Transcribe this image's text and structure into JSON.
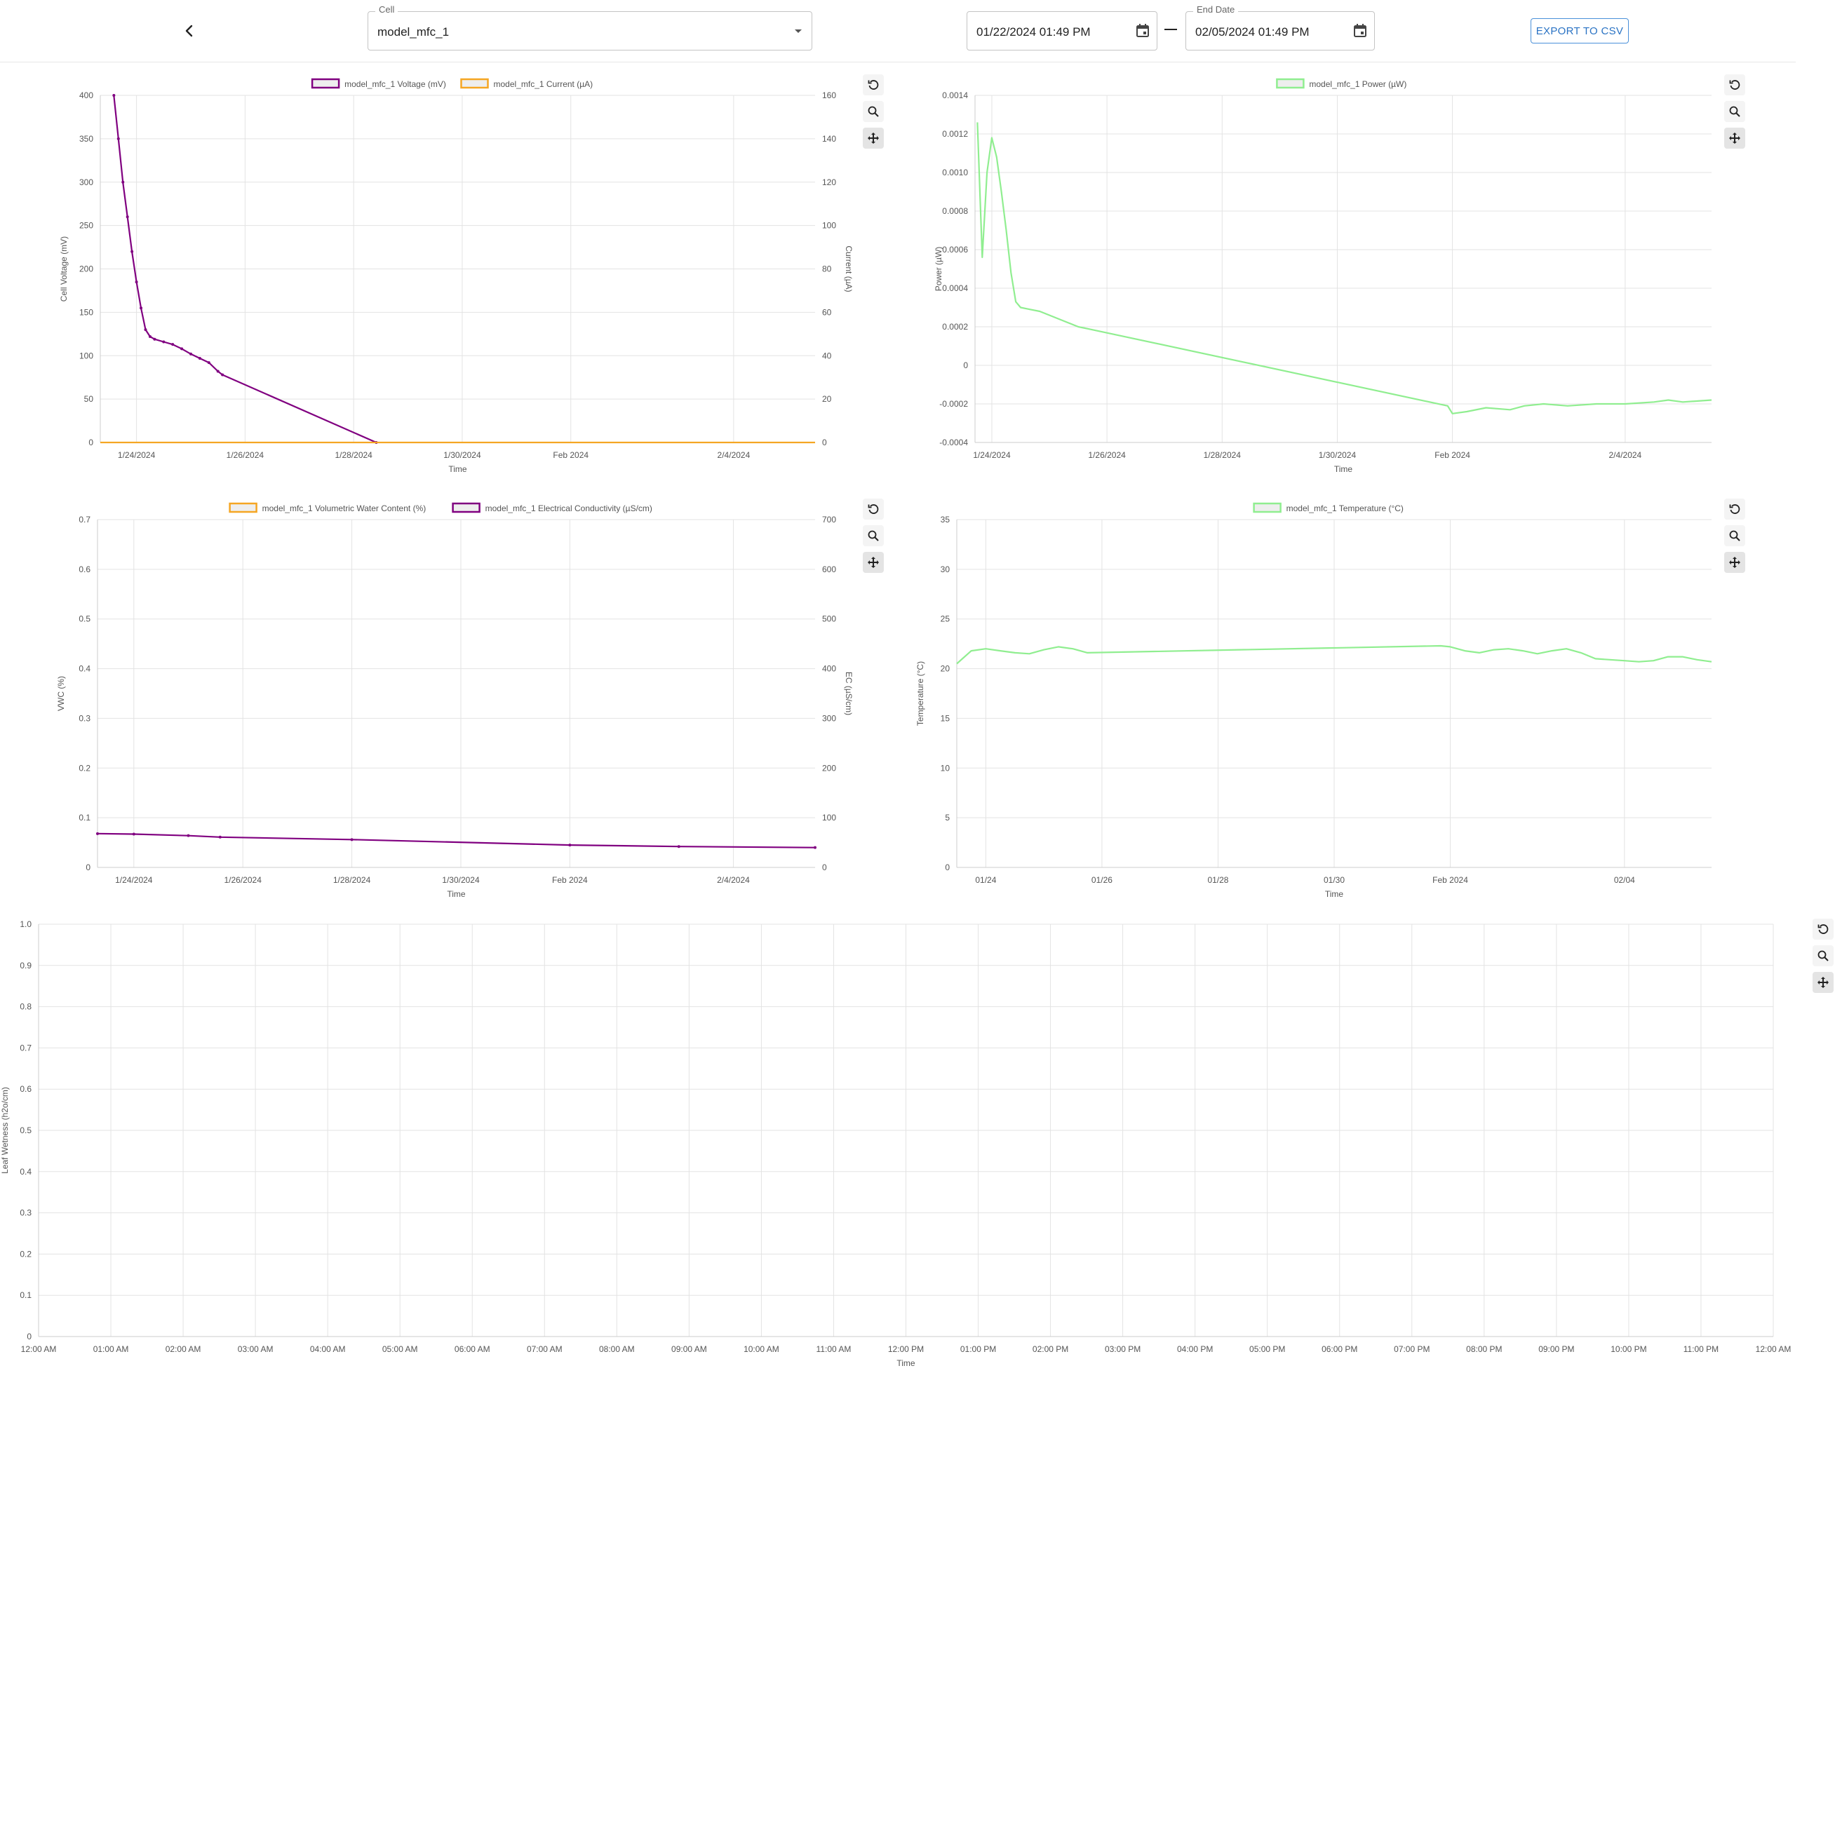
{
  "header": {
    "cell_label": "Cell",
    "cell_value": "model_mfc_1",
    "start_date": "01/22/2024 01:49 PM",
    "end_date_label": "End Date",
    "end_date": "02/05/2024 01:49 PM",
    "export_label": "EXPORT TO CSV"
  },
  "chart_data": [
    {
      "id": "vi",
      "type": "line",
      "series": [
        {
          "name": "model_mfc_1 Voltage (mV)",
          "color": "#800080",
          "axis": "left",
          "x": [
            "2024-01-23 14:00",
            "2024-01-23 16:00",
            "2024-01-23 18:00",
            "2024-01-23 20:00",
            "2024-01-23 22:00",
            "2024-01-24 00:00",
            "2024-01-24 02:00",
            "2024-01-24 04:00",
            "2024-01-24 06:00",
            "2024-01-24 08:00",
            "2024-01-24 12:00",
            "2024-01-24 16:00",
            "2024-01-24 20:00",
            "2024-01-25 00:00",
            "2024-01-25 04:00",
            "2024-01-25 08:00",
            "2024-01-25 12:00",
            "2024-01-25 14:00",
            "2024-01-28 10:00"
          ],
          "y": [
            400,
            350,
            300,
            260,
            220,
            185,
            155,
            130,
            122,
            119,
            116,
            113,
            108,
            102,
            97,
            92,
            82,
            78,
            0
          ]
        },
        {
          "name": "model_mfc_1 Current (µA)",
          "color": "#f5a623",
          "axis": "right",
          "x": [
            "2024-01-23 08:00",
            "2024-01-25 14:00",
            "2024-02-05 12:00"
          ],
          "y": [
            0,
            0,
            0
          ]
        }
      ],
      "xlabel": "Time",
      "ylabel": "Cell Voltage (mV)",
      "y2label": "Current (µA)",
      "ylim": [
        0,
        400
      ],
      "y2lim": [
        0,
        160
      ],
      "yticks": [
        "0",
        "50",
        "100",
        "150",
        "200",
        "250",
        "300",
        "350",
        "400"
      ],
      "y2ticks": [
        "0",
        "20",
        "40",
        "60",
        "80",
        "100",
        "120",
        "140",
        "160"
      ],
      "xticks": [
        {
          "label": "1/24/2024",
          "x": "2024-01-24 00:00"
        },
        {
          "label": "1/26/2024",
          "x": "2024-01-26 00:00"
        },
        {
          "label": "1/28/2024",
          "x": "2024-01-28 00:00"
        },
        {
          "label": "1/30/2024",
          "x": "2024-01-30 00:00"
        },
        {
          "label": "Feb 2024",
          "x": "2024-02-01 00:00"
        },
        {
          "label": "2/4/2024",
          "x": "2024-02-04 00:00"
        }
      ],
      "xlim": [
        "2024-01-23 08:00",
        "2024-02-05 12:00"
      ],
      "grid": true,
      "legend": "top"
    },
    {
      "id": "power",
      "type": "line",
      "series": [
        {
          "name": "model_mfc_1 Power (µW)",
          "color": "#90ee90",
          "axis": "left",
          "x": [
            "2024-01-23 18:00",
            "2024-01-23 20:00",
            "2024-01-23 22:00",
            "2024-01-24 00:00",
            "2024-01-24 02:00",
            "2024-01-24 04:00",
            "2024-01-24 06:00",
            "2024-01-24 08:00",
            "2024-01-24 10:00",
            "2024-01-24 12:00",
            "2024-01-24 16:00",
            "2024-01-24 20:00",
            "2024-01-25 00:00",
            "2024-01-25 04:00",
            "2024-01-25 08:00",
            "2024-01-25 12:00",
            "2024-01-25 16:00",
            "2024-01-31 22:00",
            "2024-02-01 00:00",
            "2024-02-01 06:00",
            "2024-02-01 14:00",
            "2024-02-02 00:00",
            "2024-02-02 06:00",
            "2024-02-02 14:00",
            "2024-02-03 00:00",
            "2024-02-03 12:00",
            "2024-02-04 00:00",
            "2024-02-04 12:00",
            "2024-02-04 18:00",
            "2024-02-05 00:00",
            "2024-02-05 12:00"
          ],
          "y": [
            0.00126,
            0.00056,
            0.001,
            0.00118,
            0.00108,
            0.0009,
            0.0007,
            0.00048,
            0.00033,
            0.0003,
            0.00029,
            0.00028,
            0.00026,
            0.00024,
            0.00022,
            0.0002,
            0.00019,
            -0.00021,
            -0.00025,
            -0.00024,
            -0.00022,
            -0.00023,
            -0.00021,
            -0.0002,
            -0.00021,
            -0.0002,
            -0.0002,
            -0.00019,
            -0.00018,
            -0.00019,
            -0.00018
          ]
        }
      ],
      "xlabel": "Time",
      "ylabel": "Power (µW)",
      "ylim": [
        -0.0004,
        0.0014
      ],
      "yticks": [
        "-0.0004",
        "-0.0002",
        "0",
        "0.0002",
        "0.0004",
        "0.0006",
        "0.0008",
        "0.0010",
        "0.0012",
        "0.0014"
      ],
      "xticks": [
        {
          "label": "1/24/2024",
          "x": "2024-01-24 00:00"
        },
        {
          "label": "1/26/2024",
          "x": "2024-01-26 00:00"
        },
        {
          "label": "1/28/2024",
          "x": "2024-01-28 00:00"
        },
        {
          "label": "1/30/2024",
          "x": "2024-01-30 00:00"
        },
        {
          "label": "Feb 2024",
          "x": "2024-02-01 00:00"
        },
        {
          "label": "2/4/2024",
          "x": "2024-02-04 00:00"
        }
      ],
      "xlim": [
        "2024-01-23 17:00",
        "2024-02-05 12:00"
      ],
      "grid": true,
      "legend": "top"
    },
    {
      "id": "vwc",
      "type": "line",
      "series": [
        {
          "name": "model_mfc_1 Volumetric Water Content (%)",
          "color": "#f5a623",
          "axis": "left",
          "x": [],
          "y": []
        },
        {
          "name": "model_mfc_1 Electrical Conductivity (µS/cm)",
          "color": "#800080",
          "axis": "right",
          "x": [
            "2024-01-23 08:00",
            "2024-01-24 00:00",
            "2024-01-25 00:00",
            "2024-01-25 14:00",
            "2024-01-28 00:00",
            "2024-02-01 00:00",
            "2024-02-03 00:00",
            "2024-02-05 12:00"
          ],
          "y": [
            68,
            67,
            64,
            61,
            56,
            45,
            42,
            40
          ]
        }
      ],
      "xlabel": "Time",
      "ylabel": "VWC (%)",
      "y2label": "EC (µS/cm)",
      "ylim": [
        0,
        0.7
      ],
      "y2lim": [
        0,
        700
      ],
      "yticks": [
        "0",
        "0.1",
        "0.2",
        "0.3",
        "0.4",
        "0.5",
        "0.6",
        "0.7"
      ],
      "y2ticks": [
        "0",
        "100",
        "200",
        "300",
        "400",
        "500",
        "600",
        "700"
      ],
      "xticks": [
        {
          "label": "1/24/2024",
          "x": "2024-01-24 00:00"
        },
        {
          "label": "1/26/2024",
          "x": "2024-01-26 00:00"
        },
        {
          "label": "1/28/2024",
          "x": "2024-01-28 00:00"
        },
        {
          "label": "1/30/2024",
          "x": "2024-01-30 00:00"
        },
        {
          "label": "Feb 2024",
          "x": "2024-02-01 00:00"
        },
        {
          "label": "2/4/2024",
          "x": "2024-02-04 00:00"
        }
      ],
      "xlim": [
        "2024-01-23 08:00",
        "2024-02-05 12:00"
      ],
      "grid": true,
      "legend": "top"
    },
    {
      "id": "temp",
      "type": "line",
      "series": [
        {
          "name": "model_mfc_1 Temperature (°C)",
          "color": "#90ee90",
          "axis": "left",
          "x": [
            "2024-01-23 12:00",
            "2024-01-23 18:00",
            "2024-01-24 00:00",
            "2024-01-24 06:00",
            "2024-01-24 12:00",
            "2024-01-24 18:00",
            "2024-01-25 00:00",
            "2024-01-25 06:00",
            "2024-01-25 12:00",
            "2024-01-25 18:00",
            "2024-01-31 20:00",
            "2024-02-01 00:00",
            "2024-02-01 06:00",
            "2024-02-01 12:00",
            "2024-02-01 18:00",
            "2024-02-02 00:00",
            "2024-02-02 06:00",
            "2024-02-02 12:00",
            "2024-02-02 18:00",
            "2024-02-03 00:00",
            "2024-02-03 06:00",
            "2024-02-03 12:00",
            "2024-02-03 18:00",
            "2024-02-04 00:00",
            "2024-02-04 06:00",
            "2024-02-04 12:00",
            "2024-02-04 18:00",
            "2024-02-05 00:00",
            "2024-02-05 06:00",
            "2024-02-05 12:00"
          ],
          "y": [
            20.5,
            21.8,
            22.0,
            21.8,
            21.6,
            21.5,
            21.9,
            22.2,
            22.0,
            21.6,
            22.3,
            22.2,
            21.8,
            21.6,
            21.9,
            22.0,
            21.8,
            21.5,
            21.8,
            22.0,
            21.6,
            21.0,
            20.9,
            20.8,
            20.7,
            20.8,
            21.2,
            21.2,
            20.9,
            20.7
          ]
        }
      ],
      "xlabel": "Time",
      "ylabel": "Temperature (°C)",
      "ylim": [
        0,
        35
      ],
      "yticks": [
        "0",
        "5",
        "10",
        "15",
        "20",
        "25",
        "30",
        "35"
      ],
      "xticks": [
        {
          "label": "01/24",
          "x": "2024-01-24 00:00"
        },
        {
          "label": "01/26",
          "x": "2024-01-26 00:00"
        },
        {
          "label": "01/28",
          "x": "2024-01-28 00:00"
        },
        {
          "label": "01/30",
          "x": "2024-01-30 00:00"
        },
        {
          "label": "Feb 2024",
          "x": "2024-02-01 00:00"
        },
        {
          "label": "02/04",
          "x": "2024-02-04 00:00"
        }
      ],
      "xlim": [
        "2024-01-23 12:00",
        "2024-02-05 12:00"
      ],
      "grid": true,
      "legend": "top"
    },
    {
      "id": "leaf",
      "type": "line",
      "series": [],
      "xlabel": "Time",
      "ylabel": "Leaf Wetness (h2o/cm)",
      "ylim": [
        0,
        1.0
      ],
      "yticks": [
        "0",
        "0.1",
        "0.2",
        "0.3",
        "0.4",
        "0.5",
        "0.6",
        "0.7",
        "0.8",
        "0.9",
        "1.0"
      ],
      "xticks": [
        {
          "label": "12:00 AM"
        },
        {
          "label": "01:00 AM"
        },
        {
          "label": "02:00 AM"
        },
        {
          "label": "03:00 AM"
        },
        {
          "label": "04:00 AM"
        },
        {
          "label": "05:00 AM"
        },
        {
          "label": "06:00 AM"
        },
        {
          "label": "07:00 AM"
        },
        {
          "label": "08:00 AM"
        },
        {
          "label": "09:00 AM"
        },
        {
          "label": "10:00 AM"
        },
        {
          "label": "11:00 AM"
        },
        {
          "label": "12:00 PM"
        },
        {
          "label": "01:00 PM"
        },
        {
          "label": "02:00 PM"
        },
        {
          "label": "03:00 PM"
        },
        {
          "label": "04:00 PM"
        },
        {
          "label": "05:00 PM"
        },
        {
          "label": "06:00 PM"
        },
        {
          "label": "07:00 PM"
        },
        {
          "label": "08:00 PM"
        },
        {
          "label": "09:00 PM"
        },
        {
          "label": "10:00 PM"
        },
        {
          "label": "11:00 PM"
        },
        {
          "label": "12:00 AM"
        }
      ],
      "grid": true,
      "legend": "none"
    }
  ],
  "icons": {
    "back": "chevron-left-icon",
    "dropdown": "caret-down-icon",
    "calendar": "calendar-icon",
    "reset": "reset-zoom-icon",
    "zoom": "zoom-icon",
    "pan": "pan-icon"
  }
}
